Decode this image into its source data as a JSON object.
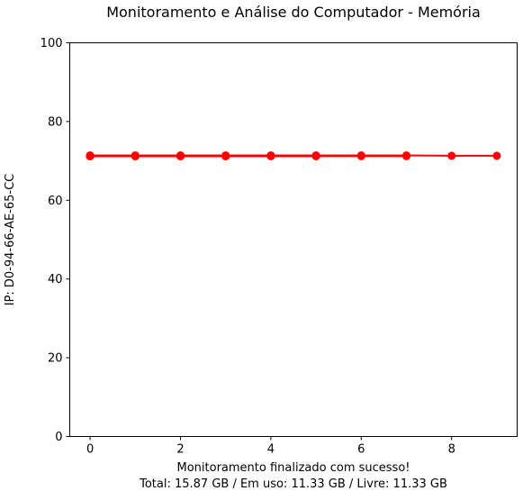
{
  "chart_data": {
    "type": "line",
    "title": "Monitoramento e Análise do Computador - Memória",
    "ylabel": "IP: D0-94-66-AE-65-CC",
    "xlabel_line1": "Monitoramento finalizado com sucesso!",
    "xlabel_line2": "Total: 15.87 GB / Em uso: 11.33 GB / Livre: 11.33 GB",
    "xlim": [
      -0.45,
      9.45
    ],
    "ylim": [
      0,
      100
    ],
    "x_ticks": [
      0,
      2,
      4,
      6,
      8
    ],
    "y_ticks": [
      0,
      20,
      40,
      60,
      80,
      100
    ],
    "grid": false,
    "series": [
      {
        "color": "#ff0000",
        "x": [
          0,
          1,
          2,
          3,
          4,
          5,
          6,
          7,
          8,
          9
        ],
        "y": [
          71.4,
          71.4,
          71.4,
          71.4,
          71.4,
          71.4,
          71.4,
          71.4,
          71.3,
          71.3
        ]
      },
      {
        "color": "#ff0000",
        "x": [
          0,
          1,
          2,
          3,
          4,
          5,
          6,
          7
        ],
        "y": [
          71.2,
          71.2,
          71.2,
          71.2,
          71.2,
          71.2,
          71.2,
          71.2
        ]
      },
      {
        "color": "#ff0000",
        "x": [
          0,
          1,
          2,
          3,
          4,
          5,
          6
        ],
        "y": [
          71.3,
          71.3,
          71.3,
          71.3,
          71.3,
          71.3,
          71.3
        ]
      },
      {
        "color": "#ff0000",
        "x": [
          0,
          1,
          2,
          3,
          4,
          5
        ],
        "y": [
          71.2,
          71.2,
          71.2,
          71.2,
          71.2,
          71.2
        ]
      },
      {
        "color": "#ff0000",
        "x": [
          0,
          1,
          2,
          3,
          4
        ],
        "y": [
          71.3,
          71.3,
          71.3,
          71.3,
          71.3
        ]
      },
      {
        "color": "#ff0000",
        "x": [
          0,
          1,
          2,
          3
        ],
        "y": [
          71.2,
          71.2,
          71.2,
          71.2
        ]
      },
      {
        "color": "#ff0000",
        "x": [
          0,
          1,
          2
        ],
        "y": [
          71.3,
          71.3,
          71.3
        ]
      },
      {
        "color": "#ff0000",
        "x": [
          0,
          1
        ],
        "y": [
          71.2,
          71.2
        ]
      },
      {
        "color": "#ff0000",
        "x": [
          0
        ],
        "y": [
          71.3
        ]
      }
    ]
  }
}
